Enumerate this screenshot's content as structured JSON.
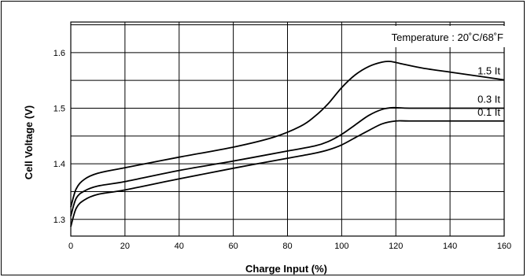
{
  "chart_data": {
    "type": "line",
    "title": "",
    "xlabel": "Charge Input (%)",
    "ylabel": "Cell Voltage (V)",
    "xlim": [
      0,
      160
    ],
    "ylim": [
      1.27,
      1.655
    ],
    "xticks": [
      0,
      20,
      40,
      60,
      80,
      100,
      120,
      140,
      160
    ],
    "yticks": [
      1.3,
      1.4,
      1.5,
      1.6
    ],
    "grid": true,
    "legend": "none",
    "annotation": "Temperature : 20˚C/68˚F",
    "series": [
      {
        "name": "1.5 It",
        "x": [
          0,
          2,
          5,
          10,
          20,
          40,
          60,
          75,
          85,
          90,
          95,
          100,
          105,
          110,
          115,
          118,
          122,
          130,
          140,
          150,
          160
        ],
        "y": [
          1.322,
          1.355,
          1.372,
          1.383,
          1.393,
          1.412,
          1.43,
          1.448,
          1.468,
          1.485,
          1.508,
          1.537,
          1.56,
          1.575,
          1.583,
          1.584,
          1.58,
          1.572,
          1.565,
          1.558,
          1.551
        ]
      },
      {
        "name": "0.3 It",
        "x": [
          0,
          2,
          5,
          10,
          20,
          40,
          60,
          80,
          90,
          95,
          100,
          105,
          110,
          115,
          119,
          125,
          140,
          160
        ],
        "y": [
          1.306,
          1.338,
          1.351,
          1.36,
          1.368,
          1.388,
          1.405,
          1.423,
          1.432,
          1.44,
          1.453,
          1.47,
          1.487,
          1.498,
          1.501,
          1.5,
          1.5,
          1.5
        ]
      },
      {
        "name": "0.1 It",
        "x": [
          0,
          2,
          5,
          10,
          20,
          40,
          60,
          80,
          90,
          95,
          100,
          105,
          110,
          115,
          120,
          125,
          140,
          160
        ],
        "y": [
          1.287,
          1.32,
          1.335,
          1.345,
          1.353,
          1.373,
          1.392,
          1.41,
          1.419,
          1.425,
          1.434,
          1.447,
          1.46,
          1.472,
          1.477,
          1.477,
          1.477,
          1.477
        ]
      }
    ]
  }
}
